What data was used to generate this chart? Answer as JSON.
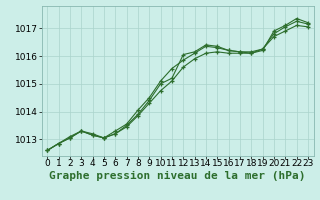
{
  "title": "Graphe pression niveau de la mer (hPa)",
  "bg_color": "#cceee8",
  "grid_color": "#aad4cc",
  "line_color": "#2d6e2d",
  "xlim": [
    -0.5,
    23.5
  ],
  "ylim": [
    1012.4,
    1017.8
  ],
  "yticks": [
    1013,
    1014,
    1015,
    1016,
    1017
  ],
  "xticks": [
    0,
    1,
    2,
    3,
    4,
    5,
    6,
    7,
    8,
    9,
    10,
    11,
    12,
    13,
    14,
    15,
    16,
    17,
    18,
    19,
    20,
    21,
    22,
    23
  ],
  "series1": [
    1012.6,
    1012.85,
    1013.05,
    1013.3,
    1013.2,
    1013.05,
    1013.2,
    1013.5,
    1013.9,
    1014.4,
    1015.0,
    1015.2,
    1016.05,
    1016.15,
    1016.4,
    1016.35,
    1016.2,
    1016.15,
    1016.1,
    1016.2,
    1016.9,
    1017.1,
    1017.35,
    1017.2
  ],
  "series2": [
    1012.6,
    1012.85,
    1013.05,
    1013.3,
    1013.15,
    1013.05,
    1013.2,
    1013.45,
    1013.85,
    1014.3,
    1014.75,
    1015.1,
    1015.6,
    1015.9,
    1016.1,
    1016.15,
    1016.1,
    1016.1,
    1016.1,
    1016.25,
    1016.7,
    1016.9,
    1017.1,
    1017.05
  ],
  "series3": [
    1012.6,
    1012.85,
    1013.1,
    1013.3,
    1013.15,
    1013.05,
    1013.3,
    1013.55,
    1014.05,
    1014.5,
    1015.1,
    1015.55,
    1015.85,
    1016.1,
    1016.35,
    1016.3,
    1016.2,
    1016.15,
    1016.15,
    1016.25,
    1016.8,
    1017.05,
    1017.25,
    1017.15
  ],
  "title_fontsize": 8,
  "tick_fontsize": 6.5
}
